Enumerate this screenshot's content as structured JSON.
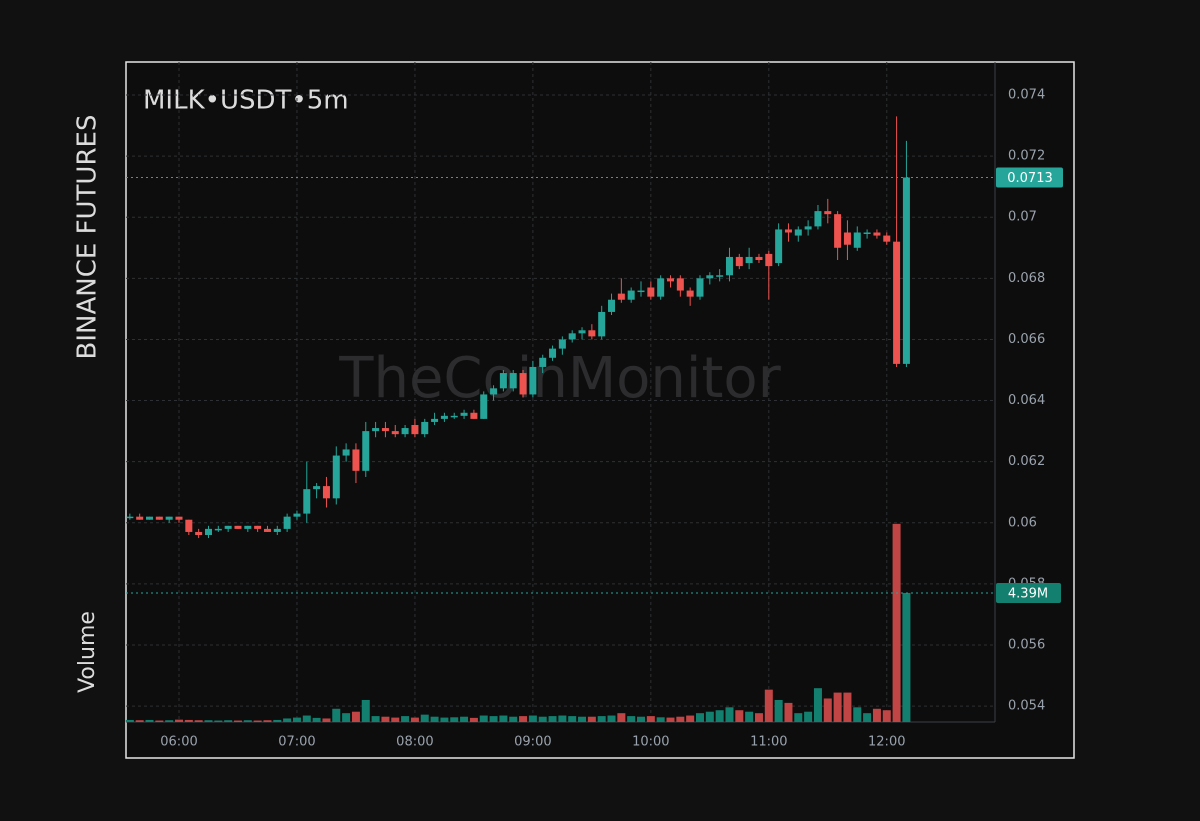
{
  "chart_data": {
    "type": "candlestick",
    "title": "MILK•USDT•5m",
    "side_label": "BINANCE FUTURES",
    "volume_label": "Volume",
    "watermark": "TheCoinMonitor",
    "categories": [
      null,
      null,
      null,
      null,
      null,
      "06:00",
      null,
      null,
      null,
      null,
      null,
      null,
      null,
      null,
      null,
      null,
      null,
      "07:00",
      null,
      null,
      null,
      null,
      null,
      null,
      null,
      null,
      null,
      null,
      null,
      "08:00",
      null,
      null,
      null,
      null,
      null,
      null,
      null,
      null,
      null,
      null,
      null,
      "09:00",
      null,
      null,
      null,
      null,
      null,
      null,
      null,
      null,
      null,
      null,
      null,
      "10:00",
      null,
      null,
      null,
      null,
      null,
      null,
      null,
      null,
      null,
      null,
      null,
      "11:00",
      null,
      null,
      null,
      null,
      null,
      null,
      null,
      null,
      null,
      null,
      null,
      "12:00",
      null,
      null
    ],
    "open": [
      0.0602,
      0.0602,
      0.0601,
      0.0602,
      0.0601,
      0.0602,
      0.0601,
      0.0597,
      0.0596,
      0.0598,
      0.0598,
      0.0599,
      0.0598,
      0.0599,
      0.0598,
      0.0597,
      0.0598,
      0.0602,
      0.0603,
      0.0611,
      0.0612,
      0.0608,
      0.0622,
      0.0624,
      0.0617,
      0.063,
      0.0631,
      0.063,
      0.0629,
      0.0632,
      0.0629,
      0.0633,
      0.0634,
      0.0635,
      0.0635,
      0.0636,
      0.0634,
      0.0642,
      0.0644,
      0.0644,
      0.0649,
      0.0642,
      0.0651,
      0.0654,
      0.0657,
      0.066,
      0.0662,
      0.0663,
      0.0661,
      0.0669,
      0.0675,
      0.0673,
      0.0676,
      0.0677,
      0.0674,
      0.068,
      0.068,
      0.0676,
      0.0674,
      0.068,
      0.0681,
      0.0681,
      0.0687,
      0.0685,
      0.0687,
      0.0688,
      0.0685,
      0.0696,
      0.0694,
      0.0696,
      0.0697,
      0.0702,
      0.0701,
      0.0695,
      0.069,
      0.0695,
      0.0695,
      0.0694,
      0.0692,
      0.0652
    ],
    "high": [
      0.0603,
      0.0603,
      0.0602,
      0.0602,
      0.0602,
      0.0602,
      0.0601,
      0.0598,
      0.0599,
      0.0599,
      0.0599,
      0.0599,
      0.0599,
      0.0599,
      0.0599,
      0.0599,
      0.0603,
      0.0604,
      0.062,
      0.0613,
      0.0615,
      0.0625,
      0.0626,
      0.0626,
      0.0633,
      0.0633,
      0.0633,
      0.0632,
      0.0632,
      0.0634,
      0.0634,
      0.0636,
      0.0636,
      0.0636,
      0.0637,
      0.0637,
      0.0643,
      0.0645,
      0.065,
      0.065,
      0.065,
      0.0653,
      0.0655,
      0.0658,
      0.0661,
      0.0663,
      0.0664,
      0.0665,
      0.0671,
      0.0675,
      0.068,
      0.0677,
      0.0679,
      0.0679,
      0.0681,
      0.0681,
      0.0681,
      0.0677,
      0.0681,
      0.0682,
      0.0683,
      0.069,
      0.0688,
      0.069,
      0.0688,
      0.0689,
      0.0698,
      0.0698,
      0.0697,
      0.0699,
      0.0704,
      0.0706,
      0.0702,
      0.0699,
      0.0697,
      0.0696,
      0.0696,
      0.0695,
      0.0733,
      0.0725
    ],
    "low": [
      0.0601,
      0.0601,
      0.0601,
      0.0601,
      0.06,
      0.06,
      0.0596,
      0.0595,
      0.0595,
      0.0597,
      0.0597,
      0.0598,
      0.0597,
      0.0597,
      0.0597,
      0.0596,
      0.0597,
      0.0601,
      0.06,
      0.0608,
      0.0605,
      0.0606,
      0.062,
      0.0613,
      0.0615,
      0.0628,
      0.0628,
      0.0628,
      0.0628,
      0.0628,
      0.0628,
      0.0632,
      0.0633,
      0.0634,
      0.0634,
      0.0634,
      0.0634,
      0.064,
      0.0643,
      0.0643,
      0.0641,
      0.0641,
      0.0649,
      0.0653,
      0.0655,
      0.0659,
      0.066,
      0.066,
      0.066,
      0.0668,
      0.0672,
      0.0672,
      0.0674,
      0.0673,
      0.0673,
      0.0677,
      0.0674,
      0.0671,
      0.0673,
      0.0678,
      0.0679,
      0.0679,
      0.0683,
      0.0683,
      0.0685,
      0.0673,
      0.0684,
      0.0692,
      0.0692,
      0.0694,
      0.0696,
      0.0698,
      0.0686,
      0.0686,
      0.0689,
      0.0693,
      0.0693,
      0.0691,
      0.0651,
      0.0651
    ],
    "close": [
      0.0602,
      0.0601,
      0.0602,
      0.0601,
      0.0602,
      0.0601,
      0.0597,
      0.0596,
      0.0598,
      0.0598,
      0.0599,
      0.0598,
      0.0599,
      0.0598,
      0.0597,
      0.0598,
      0.0602,
      0.0603,
      0.0611,
      0.0612,
      0.0608,
      0.0622,
      0.0624,
      0.0617,
      0.063,
      0.0631,
      0.063,
      0.0629,
      0.0631,
      0.0629,
      0.0633,
      0.0634,
      0.0635,
      0.0635,
      0.0636,
      0.0634,
      0.0642,
      0.0644,
      0.0649,
      0.0649,
      0.0642,
      0.0651,
      0.0654,
      0.0657,
      0.066,
      0.0662,
      0.0663,
      0.0661,
      0.0669,
      0.0673,
      0.0673,
      0.0676,
      0.0676,
      0.0674,
      0.068,
      0.0679,
      0.0676,
      0.0674,
      0.068,
      0.0681,
      0.0681,
      0.0687,
      0.0684,
      0.0687,
      0.0686,
      0.0684,
      0.0696,
      0.0695,
      0.0696,
      0.0697,
      0.0702,
      0.0701,
      0.069,
      0.0691,
      0.0695,
      0.0695,
      0.0694,
      0.0692,
      0.0652,
      0.0713
    ],
    "volume": [
      70000,
      60000,
      70000,
      50000,
      60000,
      80000,
      70000,
      60000,
      60000,
      50000,
      60000,
      50000,
      60000,
      50000,
      60000,
      70000,
      120000,
      150000,
      220000,
      140000,
      120000,
      450000,
      300000,
      350000,
      750000,
      200000,
      180000,
      150000,
      200000,
      150000,
      250000,
      180000,
      150000,
      160000,
      180000,
      140000,
      220000,
      200000,
      220000,
      180000,
      200000,
      220000,
      180000,
      200000,
      220000,
      200000,
      180000,
      180000,
      200000,
      220000,
      300000,
      200000,
      180000,
      200000,
      160000,
      150000,
      180000,
      220000,
      300000,
      350000,
      400000,
      500000,
      400000,
      350000,
      300000,
      1100000,
      750000,
      650000,
      300000,
      350000,
      1150000,
      800000,
      1000000,
      1000000,
      500000,
      300000,
      450000,
      400000,
      6740000,
      4390000
    ],
    "last_volume_label": "4.39M",
    "ylim": [
      0.05348,
      0.07508
    ],
    "yticks": [
      0.054,
      0.056,
      0.058,
      0.06,
      0.062,
      0.064,
      0.066,
      0.068,
      0.07,
      0.072,
      0.074
    ],
    "y2lim": [
      0,
      22450000
    ],
    "grid": true,
    "up_color": "#26a69a",
    "down_color": "#ef5350",
    "volume_up_color": "#13806f",
    "volume_down_color": "#c24545"
  }
}
